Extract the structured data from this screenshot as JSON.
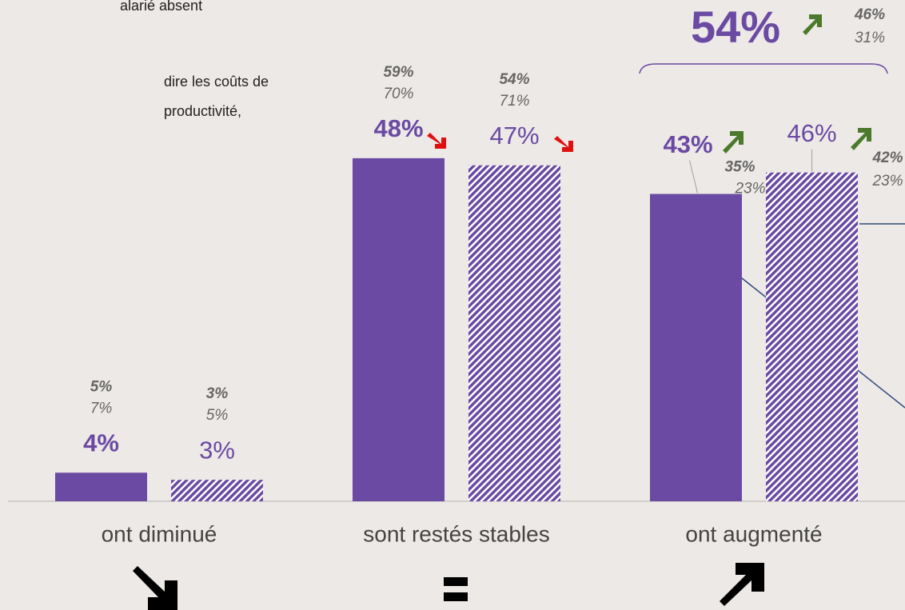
{
  "texts": [
    "alarié absent",
    "dire les coûts de",
    "productivité,"
  ],
  "chart_data": {
    "type": "bar",
    "categories": [
      "ont diminué",
      "sont restés stables",
      "ont augmenté"
    ],
    "series": [
      {
        "color": "#6b4aa3",
        "pattern": "solid",
        "values": [
          4,
          48,
          43
        ],
        "value_labels": [
          "4%",
          "48%",
          "43%"
        ],
        "comparison_labels": [
          [
            "5%",
            "7%"
          ],
          [
            "59%",
            "70%"
          ],
          [
            "35%",
            "23%"
          ]
        ]
      },
      {
        "color": "#6b4aa3",
        "pattern": "hatched",
        "values": [
          3,
          47,
          46
        ],
        "value_labels": [
          "3%",
          "47%",
          "46%"
        ],
        "comparison_labels": [
          [
            "3%",
            "5%"
          ],
          [
            "54%",
            "71%"
          ],
          [
            "42%",
            "23%"
          ]
        ]
      }
    ],
    "ylim": [
      0,
      50
    ],
    "total": {
      "label": "54%",
      "comparison_labels": [
        "46%",
        "31%"
      ]
    }
  }
}
